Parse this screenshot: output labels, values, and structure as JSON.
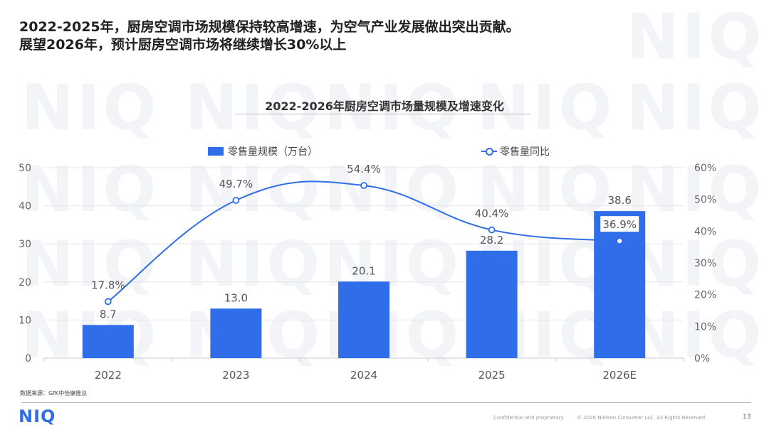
{
  "headline": {
    "line1": "2022-2025年，厨房空调市场规模保持较高增速，为空气产业发展做出突出贡献。",
    "line2": "展望2026年，预计厨房空调市场将继续增长30%以上"
  },
  "watermark_text": "NIQ",
  "chart_data": {
    "type": "bar",
    "title": "2022-2026年厨房空调市场量规模及增速变化",
    "categories": [
      "2022",
      "2023",
      "2024",
      "2025",
      "2026E"
    ],
    "series": [
      {
        "name": "零售量规模（万台）",
        "type": "bar",
        "axis": "left",
        "values": [
          8.7,
          13.0,
          20.1,
          28.2,
          38.6
        ],
        "labels": [
          "8.7",
          "13.0",
          "20.1",
          "28.2",
          "38.6"
        ]
      },
      {
        "name": "零售量同比",
        "type": "line",
        "axis": "right",
        "values": [
          17.8,
          49.7,
          54.4,
          40.4,
          36.9
        ],
        "labels": [
          "17.8%",
          "49.7%",
          "54.4%",
          "40.4%",
          "36.9%"
        ]
      }
    ],
    "y_left": {
      "min": 0,
      "max": 50,
      "ticks": [
        "0",
        "10",
        "20",
        "30",
        "40",
        "50"
      ]
    },
    "y_right": {
      "min": 0,
      "max": 60,
      "ticks": [
        "0%",
        "10%",
        "20%",
        "30%",
        "40%",
        "50%",
        "60%"
      ]
    },
    "grid": true,
    "legend_position": "top",
    "colors": {
      "bar": "#2f6ee8",
      "line": "#2f6ee8"
    }
  },
  "footer": {
    "source": "数据来源：GfK中怡康推总",
    "logo": "NIQ",
    "confidential": "Confidential and proprietary",
    "copyright": "© 2026 Nielsen Consumer LLC. All Rights Reserved.",
    "page_number": "13"
  }
}
